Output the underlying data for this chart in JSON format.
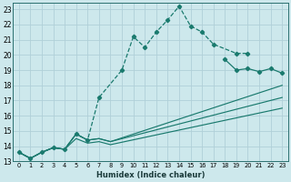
{
  "xlabel": "Humidex (Indice chaleur)",
  "bg_color": "#cde8ec",
  "grid_color": "#b0d0d8",
  "line_color": "#1a7a6e",
  "xlim": [
    -0.5,
    23.5
  ],
  "ylim": [
    13,
    23.4
  ],
  "yticks": [
    13,
    14,
    15,
    16,
    17,
    18,
    19,
    20,
    21,
    22,
    23
  ],
  "xticks": [
    0,
    1,
    2,
    3,
    4,
    5,
    6,
    7,
    8,
    9,
    10,
    11,
    12,
    13,
    14,
    15,
    16,
    17,
    18,
    19,
    20,
    21,
    22,
    23
  ],
  "curve1_x": [
    0,
    1,
    2,
    3,
    4,
    5,
    6,
    7,
    9,
    10,
    11,
    12,
    13,
    14,
    15,
    16,
    17,
    19,
    20
  ],
  "curve1_y": [
    13.6,
    13.2,
    13.6,
    13.9,
    13.8,
    14.8,
    14.4,
    17.2,
    19.0,
    21.2,
    20.5,
    21.5,
    22.3,
    23.2,
    21.9,
    21.5,
    20.7,
    20.1,
    20.1
  ],
  "line2_x": [
    0,
    1,
    2,
    3,
    4,
    5,
    6,
    7,
    8,
    23
  ],
  "line2_y": [
    13.6,
    13.2,
    13.6,
    13.9,
    13.8,
    14.8,
    14.4,
    14.5,
    14.3,
    18.0
  ],
  "line3_x": [
    0,
    1,
    2,
    3,
    4,
    5,
    6,
    7,
    8,
    23
  ],
  "line3_y": [
    13.6,
    13.2,
    13.6,
    13.9,
    13.8,
    14.8,
    14.4,
    14.5,
    14.3,
    17.2
  ],
  "line4_x": [
    0,
    1,
    2,
    3,
    4,
    5,
    6,
    7,
    8,
    23
  ],
  "line4_y": [
    13.6,
    13.2,
    13.6,
    13.9,
    13.8,
    14.5,
    14.2,
    14.3,
    14.1,
    16.5
  ],
  "curve5_x": [
    18,
    19,
    20,
    21,
    22,
    23
  ],
  "curve5_y": [
    19.7,
    19.0,
    19.1,
    18.9,
    19.1,
    18.8
  ]
}
